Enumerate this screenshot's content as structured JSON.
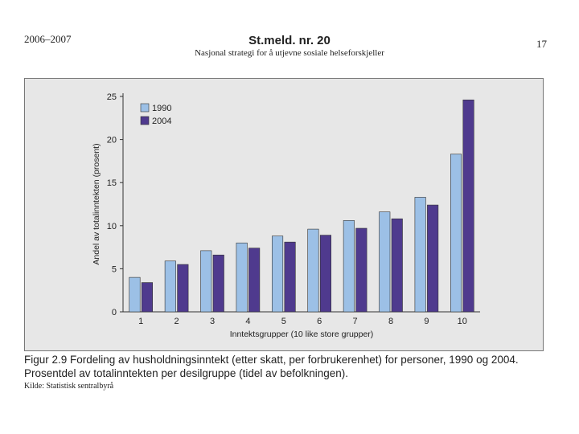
{
  "header": {
    "years": "2006–2007",
    "title": "St.meld. nr. 20",
    "subtitle": "Nasjonal strategi for å utjevne sosiale helseforskjeller",
    "page_number": "17"
  },
  "caption": {
    "line1": "Figur 2.9 Fordeling av husholdningsinntekt (etter skatt, per forbrukerenhet) for personer, 1990 og 2004.",
    "line2": "Prosentdel av totalinntekten per desilgruppe (tidel av befolkningen)."
  },
  "source": "Kilde: Statistisk sentralbyrå",
  "colors": {
    "series_1990": "#9cc0e6",
    "series_2004": "#4f3a8e",
    "plot_bg": "#e7e7e7"
  },
  "chart_data": {
    "type": "bar",
    "categories": [
      "1",
      "2",
      "3",
      "4",
      "5",
      "6",
      "7",
      "8",
      "9",
      "10"
    ],
    "series": [
      {
        "name": "1990",
        "values": [
          4.0,
          5.9,
          7.1,
          8.0,
          8.8,
          9.6,
          10.6,
          11.6,
          13.3,
          18.3
        ]
      },
      {
        "name": "2004",
        "values": [
          3.4,
          5.5,
          6.6,
          7.4,
          8.1,
          8.9,
          9.7,
          10.8,
          12.4,
          24.6
        ]
      }
    ],
    "xlabel": "Inntektsgrupper (10 like store grupper)",
    "ylabel": "Andel av totalinntekten (prosent)",
    "ylim": [
      0,
      25
    ],
    "yticks": [
      0,
      5,
      10,
      15,
      20,
      25
    ],
    "legend": "top-left",
    "grid": false
  }
}
